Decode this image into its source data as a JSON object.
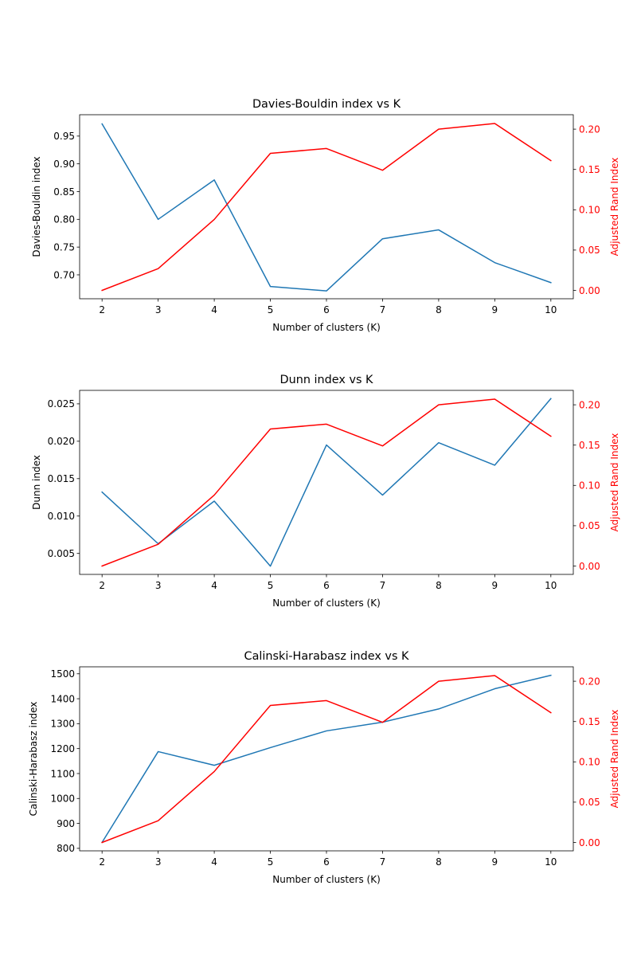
{
  "chart_data": [
    {
      "type": "line",
      "title": "Davies-Bouldin index vs K",
      "xlabel": "Number of clusters (K)",
      "ylabel": "Davies-Bouldin index",
      "y2label": "Adjusted Rand Index",
      "x": [
        2,
        3,
        4,
        5,
        6,
        7,
        8,
        9,
        10
      ],
      "xticks": [
        "2",
        "3",
        "4",
        "5",
        "6",
        "7",
        "8",
        "9",
        "10"
      ],
      "ylim": [
        0.6569,
        0.9885
      ],
      "yticks": [
        "0.70",
        "0.75",
        "0.80",
        "0.85",
        "0.90",
        "0.95"
      ],
      "y2lim": [
        -0.0104,
        0.2179
      ],
      "y2ticks": [
        "0.00",
        "0.05",
        "0.10",
        "0.15",
        "0.20"
      ],
      "grid": false,
      "series": [
        {
          "axis": "left",
          "color": "#1f77b4",
          "values": [
            0.972,
            0.8,
            0.871,
            0.679,
            0.671,
            0.765,
            0.781,
            0.722,
            0.686
          ]
        },
        {
          "axis": "right",
          "color": "#ff0000",
          "values": [
            0.0,
            0.027,
            0.088,
            0.17,
            0.176,
            0.149,
            0.2,
            0.207,
            0.161
          ]
        }
      ]
    },
    {
      "type": "line",
      "title": "Dunn index vs K",
      "xlabel": "Number of clusters (K)",
      "ylabel": "Dunn index",
      "y2label": "Adjusted Rand Index",
      "x": [
        2,
        3,
        4,
        5,
        6,
        7,
        8,
        9,
        10
      ],
      "xticks": [
        "2",
        "3",
        "4",
        "5",
        "6",
        "7",
        "8",
        "9",
        "10"
      ],
      "ylim": [
        0.0022,
        0.0268
      ],
      "yticks": [
        "0.005",
        "0.010",
        "0.015",
        "0.020",
        "0.025"
      ],
      "y2lim": [
        -0.0104,
        0.2179
      ],
      "y2ticks": [
        "0.00",
        "0.05",
        "0.10",
        "0.15",
        "0.20"
      ],
      "grid": false,
      "series": [
        {
          "axis": "left",
          "color": "#1f77b4",
          "values": [
            0.0132,
            0.0063,
            0.012,
            0.0033,
            0.0195,
            0.0128,
            0.0198,
            0.0168,
            0.0257
          ]
        },
        {
          "axis": "right",
          "color": "#ff0000",
          "values": [
            0.0,
            0.027,
            0.088,
            0.17,
            0.176,
            0.149,
            0.2,
            0.207,
            0.161
          ]
        }
      ]
    },
    {
      "type": "line",
      "title": "Calinski-Harabasz index vs K",
      "xlabel": "Number of clusters (K)",
      "ylabel": "Calinski-Harabasz index",
      "y2label": "Adjusted Rand Index",
      "x": [
        2,
        3,
        4,
        5,
        6,
        7,
        8,
        9,
        10
      ],
      "xticks": [
        "2",
        "3",
        "4",
        "5",
        "6",
        "7",
        "8",
        "9",
        "10"
      ],
      "ylim": [
        790,
        1528
      ],
      "yticks": [
        "800",
        "900",
        "1000",
        "1100",
        "1200",
        "1300",
        "1400",
        "1500"
      ],
      "y2lim": [
        -0.0104,
        0.2179
      ],
      "y2ticks": [
        "0.00",
        "0.05",
        "0.10",
        "0.15",
        "0.20"
      ],
      "grid": false,
      "series": [
        {
          "axis": "left",
          "color": "#1f77b4",
          "values": [
            824,
            1188,
            1133,
            1204,
            1271,
            1306,
            1359,
            1440,
            1494
          ]
        },
        {
          "axis": "right",
          "color": "#ff0000",
          "values": [
            0.0,
            0.027,
            0.088,
            0.17,
            0.176,
            0.149,
            0.2,
            0.207,
            0.161
          ]
        }
      ]
    }
  ]
}
